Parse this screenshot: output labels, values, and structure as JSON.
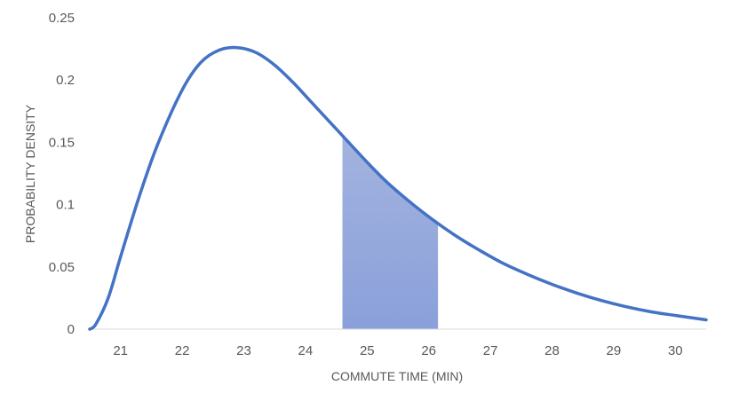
{
  "chart_data": {
    "type": "area",
    "title": "",
    "xlabel": "COMMUTE TIME (MIN)",
    "ylabel": "PROBABILITY DENSITY",
    "xlim": [
      20.5,
      30.5
    ],
    "ylim": [
      0,
      0.25
    ],
    "x_ticks": [
      21,
      22,
      23,
      24,
      25,
      26,
      27,
      28,
      29,
      30
    ],
    "y_ticks": [
      0,
      0.05,
      0.1,
      0.15,
      0.2,
      0.25
    ],
    "y_tick_labels": [
      "0",
      "0.05",
      "0.1",
      "0.15",
      "0.2",
      "0.25"
    ],
    "grid": false,
    "legend": "none",
    "series": [
      {
        "x": [
          20.5,
          20.6,
          20.8,
          21.0,
          21.3,
          21.6,
          22.0,
          22.3,
          22.6,
          22.9,
          23.2,
          23.5,
          23.8,
          24.1,
          24.4,
          24.7,
          25.0,
          25.3,
          25.6,
          25.9,
          26.2,
          26.5,
          26.8,
          27.2,
          27.6,
          28.0,
          28.4,
          28.8,
          29.2,
          29.6,
          30.0,
          30.5
        ],
        "y": [
          0.0,
          0.004,
          0.025,
          0.058,
          0.106,
          0.148,
          0.192,
          0.214,
          0.224,
          0.226,
          0.222,
          0.212,
          0.198,
          0.182,
          0.166,
          0.15,
          0.134,
          0.119,
          0.106,
          0.094,
          0.083,
          0.073,
          0.064,
          0.053,
          0.044,
          0.036,
          0.029,
          0.023,
          0.018,
          0.014,
          0.011,
          0.0075
        ]
      }
    ],
    "shaded_interval": [
      24.6,
      26.15
    ],
    "colors": {
      "line": "#4472C4",
      "fill": "#8EA5DB"
    }
  }
}
